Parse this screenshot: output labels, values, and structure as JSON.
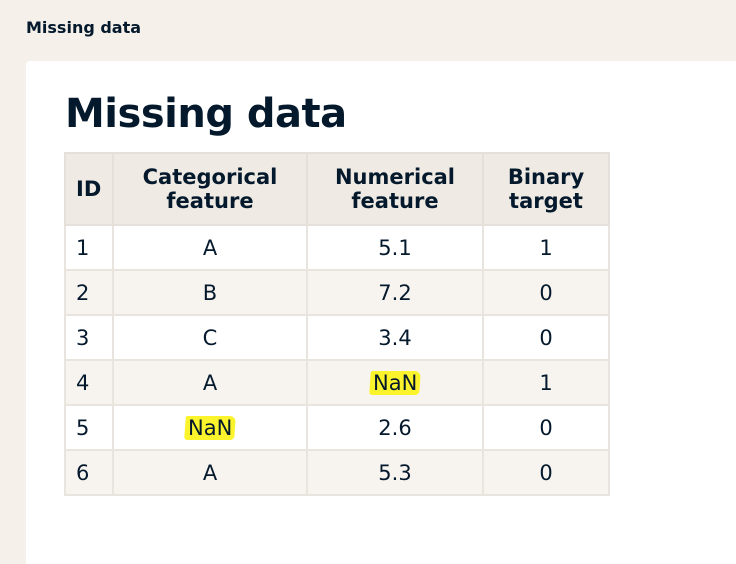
{
  "topbar": {
    "title": "Missing data"
  },
  "slide": {
    "heading": "Missing data",
    "table": {
      "headers": {
        "id": "ID",
        "categorical": "Categorical feature",
        "numerical": "Numerical feature",
        "binary": "Binary target"
      },
      "rows": [
        {
          "id": "1",
          "categorical": "A",
          "numerical": "5.1",
          "binary": "1"
        },
        {
          "id": "2",
          "categorical": "B",
          "numerical": "7.2",
          "binary": "0"
        },
        {
          "id": "3",
          "categorical": "C",
          "numerical": "3.4",
          "binary": "0"
        },
        {
          "id": "4",
          "categorical": "A",
          "numerical": "NaN",
          "binary": "1"
        },
        {
          "id": "5",
          "categorical": "NaN",
          "numerical": "2.6",
          "binary": "0"
        },
        {
          "id": "6",
          "categorical": "A",
          "numerical": "5.3",
          "binary": "0"
        }
      ]
    }
  },
  "colors": {
    "text": "#05192d",
    "highlight": "#fbf42c",
    "background": "#f5f1ea"
  }
}
